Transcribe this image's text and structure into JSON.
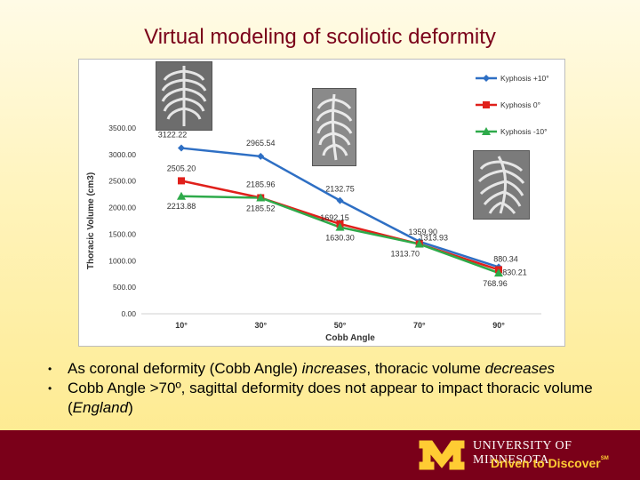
{
  "slide": {
    "title": "Virtual modeling of scoliotic deformity",
    "bullets": [
      {
        "parts": [
          "As coronal deformity (Cobb Angle) ",
          "increases",
          ", thoracic volume ",
          "decreases"
        ]
      },
      {
        "parts": [
          "Cobb Angle >70º, sagittal deformity does not appear to impact thoracic volume (",
          "England",
          ")"
        ]
      }
    ]
  },
  "footer": {
    "university": "UNIVERSITY OF MINNESOTA",
    "tagline": "Driven to Discover",
    "tagline_mark": "SM",
    "colors": {
      "maroon": "#7a0019",
      "gold": "#ffcc33"
    },
    "logo_letter": "M"
  },
  "chart_data": {
    "type": "line",
    "title": "",
    "xlabel": "Cobb Angle",
    "ylabel": "Thoracic Volume (cm3)",
    "categories": [
      "10°",
      "30°",
      "50°",
      "70°",
      "90°"
    ],
    "ylim": [
      0,
      3500
    ],
    "yticks": [
      "0.00",
      "500.00",
      "1000.00",
      "1500.00",
      "2000.00",
      "2500.00",
      "3000.00",
      "3500.00"
    ],
    "grid": false,
    "legend_position": "top-right",
    "series": [
      {
        "name": "Kyphosis +10°",
        "color": "#2e6fc4",
        "marker": "diamond",
        "values": [
          3122.22,
          2965.54,
          2132.75,
          1359.9,
          880.34
        ],
        "labels": [
          "3122.22",
          "2965.54",
          "2132.75",
          "1359.90",
          "880.34"
        ]
      },
      {
        "name": "Kyphosis 0°",
        "color": "#e0201b",
        "marker": "square",
        "values": [
          2505.2,
          2185.96,
          1692.15,
          1313.93,
          830.21
        ],
        "labels": [
          "2505.20",
          "2185.96",
          "1692.15",
          "1313.93",
          "830.21"
        ]
      },
      {
        "name": "Kyphosis -10°",
        "color": "#2eaa4a",
        "marker": "triangle",
        "values": [
          2213.88,
          2185.52,
          1630.3,
          1313.7,
          768.96
        ],
        "labels": [
          "2213.88",
          "2185.52",
          "1630.30",
          "1313.70",
          "768.96"
        ]
      }
    ],
    "insets": [
      "ribcage-image-10",
      "ribcage-image-50",
      "ribcage-image-90"
    ]
  }
}
